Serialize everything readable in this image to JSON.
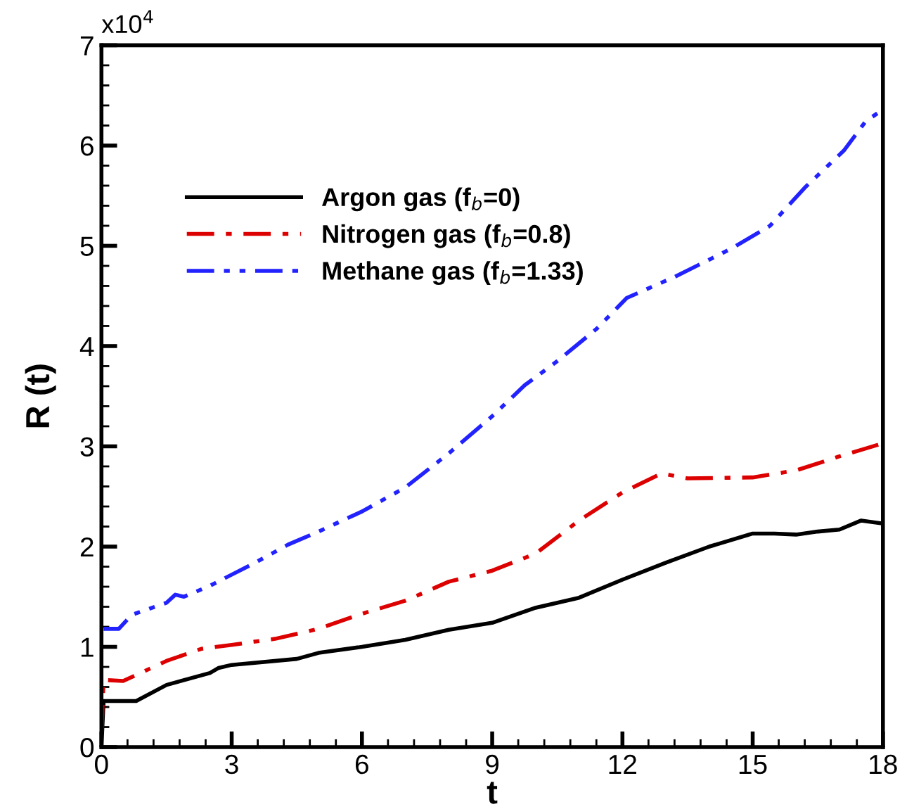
{
  "chart_data": {
    "type": "line",
    "xlabel": "t",
    "ylabel": "R (t)",
    "annotations": [
      "x10$^{4}$"
    ],
    "xlim": [
      0,
      18
    ],
    "xticks": [
      0,
      3,
      6,
      9,
      12,
      15,
      18
    ],
    "ylim": [
      0,
      7
    ],
    "yticks": [
      0,
      1,
      2,
      3,
      4,
      5,
      6,
      7
    ],
    "grid": false,
    "legend": "top left",
    "marker": "none",
    "series": [
      {
        "name": "Argon gas (f$_{b}$=0)",
        "color": "#000000",
        "line_style": "solid",
        "x": [
          0,
          0.05,
          0.8,
          1.5,
          2.5,
          2.7,
          3,
          4.5,
          5,
          6,
          7,
          8,
          9,
          10,
          11,
          12,
          13,
          14,
          15,
          15.5,
          16,
          16.5,
          17,
          17.5,
          18
        ],
        "values": [
          0,
          0.46,
          0.46,
          0.62,
          0.74,
          0.79,
          0.82,
          0.88,
          0.94,
          1.0,
          1.07,
          1.17,
          1.24,
          1.39,
          1.49,
          1.67,
          1.84,
          2.0,
          2.13,
          2.13,
          2.12,
          2.15,
          2.17,
          2.26,
          2.23
        ]
      },
      {
        "name": "Nitrogen gas (f$_{b}$=0.8)",
        "color": "#dd0000",
        "line_style": "dashdot",
        "x": [
          0,
          0.05,
          0.5,
          1.5,
          2.3,
          3,
          4,
          5,
          6,
          7,
          8,
          9,
          10,
          11,
          12,
          12.9,
          13.5,
          15,
          16,
          17,
          18
        ],
        "values": [
          0.15,
          0.67,
          0.66,
          0.86,
          0.98,
          1.02,
          1.08,
          1.18,
          1.33,
          1.46,
          1.65,
          1.76,
          1.93,
          2.26,
          2.54,
          2.73,
          2.68,
          2.69,
          2.76,
          2.9,
          3.03
        ]
      },
      {
        "name": "Methane gas (f$_{b}$=1.33)",
        "color": "#2222ff",
        "line_style": "dashdotdot",
        "x": [
          0.05,
          0.4,
          0.7,
          1.5,
          1.7,
          1.9,
          2.5,
          3,
          3.5,
          4.3,
          5,
          6,
          7,
          8,
          9,
          9.75,
          10.5,
          11.4,
          12.1,
          13.2,
          14.5,
          15.4,
          16.2,
          17.1,
          17.6,
          18
        ],
        "values": [
          1.18,
          1.18,
          1.32,
          1.44,
          1.52,
          1.5,
          1.61,
          1.72,
          1.83,
          2.02,
          2.15,
          2.35,
          2.59,
          2.93,
          3.3,
          3.61,
          3.85,
          4.17,
          4.48,
          4.69,
          4.97,
          5.2,
          5.58,
          5.95,
          6.24,
          6.36
        ]
      }
    ]
  }
}
